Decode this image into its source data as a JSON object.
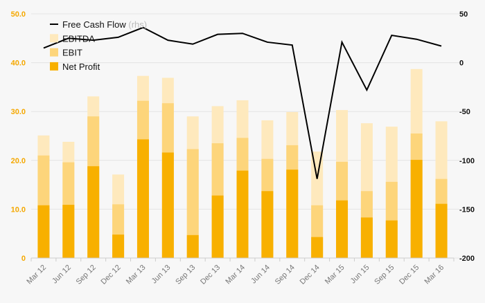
{
  "chart_data": {
    "type": "bar",
    "categories": [
      "Mar 12",
      "Jun 12",
      "Sep 12",
      "Dec 12",
      "Mar 13",
      "Jun 13",
      "Sep 13",
      "Dec 13",
      "Mar 14",
      "Jun 14",
      "Sep 14",
      "Dec 14",
      "Mar 15",
      "Jun 15",
      "Sep 15",
      "Dec 15",
      "Mar 16"
    ],
    "series": [
      {
        "name": "EBITDA",
        "kind": "bar",
        "axis": "left",
        "color": "#fee9bd",
        "values": [
          25.1,
          23.8,
          33.1,
          17.1,
          37.3,
          36.9,
          29.0,
          31.1,
          32.3,
          28.2,
          29.9,
          21.8,
          30.3,
          27.6,
          26.9,
          38.7,
          28.0
        ]
      },
      {
        "name": "EBIT",
        "kind": "bar",
        "axis": "left",
        "color": "#fdd57b",
        "values": [
          21.0,
          19.6,
          29.0,
          11.0,
          32.2,
          31.7,
          22.3,
          23.5,
          24.6,
          20.3,
          23.1,
          10.8,
          19.7,
          13.7,
          15.6,
          25.5,
          16.2
        ]
      },
      {
        "name": "Net Profit",
        "kind": "bar",
        "axis": "left",
        "color": "#f8b000",
        "values": [
          10.8,
          10.9,
          18.8,
          4.8,
          24.3,
          21.6,
          4.7,
          12.8,
          17.9,
          13.7,
          18.1,
          4.3,
          11.8,
          8.3,
          7.7,
          20.1,
          11.1
        ]
      },
      {
        "name": "Free Cash Flow",
        "name_suffix": "(rhs)",
        "kind": "line",
        "axis": "right",
        "color": "#000000",
        "values": [
          15,
          25,
          23,
          26,
          36,
          23,
          19,
          29,
          30,
          21,
          18,
          -119,
          21,
          -28,
          28,
          24,
          17
        ]
      }
    ],
    "y_left": {
      "ylim": [
        0,
        50
      ],
      "ticks": [
        "0",
        "10.0",
        "20.0",
        "30.0",
        "40.0",
        "50.0"
      ]
    },
    "y_right": {
      "ylim": [
        -200,
        50
      ],
      "ticks": [
        "-200",
        "-150",
        "-100",
        "-50",
        "0",
        "50"
      ]
    },
    "legend": "top-left",
    "grid": true,
    "colors": {
      "background": "#f7f7f7",
      "grid": "#e4e4e4",
      "left_axis": "#f5a800",
      "right_axis": "#111111",
      "x_labels": "#777777"
    }
  }
}
